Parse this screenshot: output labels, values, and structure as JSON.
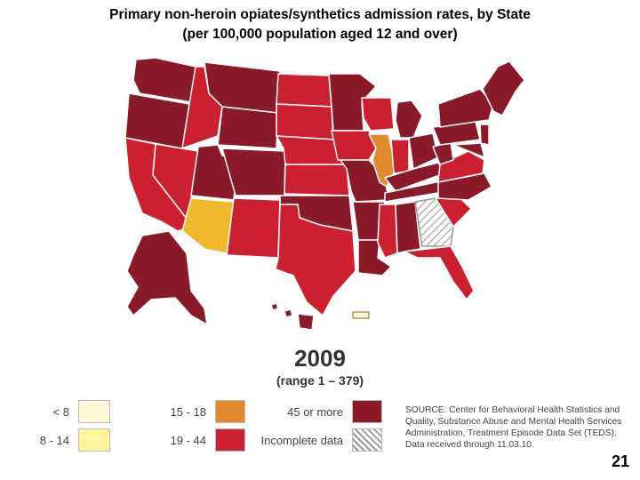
{
  "title_line1": "Primary non-heroin opiates/synthetics admission rates, by State",
  "title_line2": "(per 100,000 population aged 12 and over)",
  "year": "2009",
  "range": "(range 1 – 379)",
  "colors": {
    "lt8": "#fff7d6",
    "r8_14": "#fff59a",
    "r15_18": "#e08a2c",
    "r19_44": "#cc1f2f",
    "r45plus": "#8b1a28",
    "incomplete": "hatched",
    "arizona": "#f0b82a",
    "illinois": "#e08a2c"
  },
  "legend": [
    {
      "label": "< 8",
      "key": "lt8"
    },
    {
      "label": "8 - 14",
      "key": "r8_14"
    },
    {
      "label": "15 - 18",
      "key": "r15_18"
    },
    {
      "label": "19 - 44",
      "key": "r19_44"
    },
    {
      "label": "45 or more",
      "key": "r45plus"
    },
    {
      "label": "Incomplete data",
      "key": "incomplete"
    }
  ],
  "source": "SOURCE: Center for Behavioral Health Statistics and Quality, Substance Abuse and Mental Health Services Administration, Treatment Episode Data Set (TEDS). Data received through 11.03.10.",
  "page_number": "21"
}
